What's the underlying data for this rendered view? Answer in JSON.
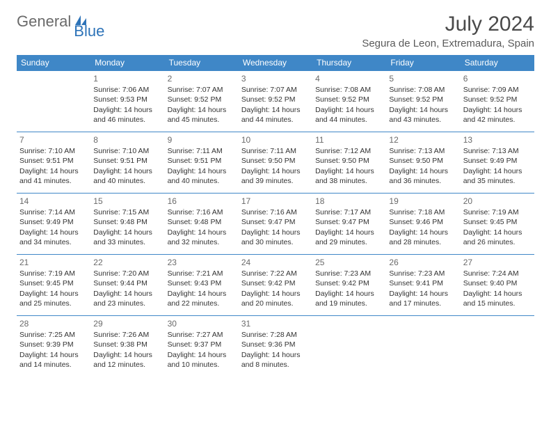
{
  "logo": {
    "general": "General",
    "blue": "Blue"
  },
  "title": "July 2024",
  "location": "Segura de Leon, Extremadura, Spain",
  "colors": {
    "header_bg": "#3f87c7",
    "header_text": "#ffffff",
    "border": "#3f87c7",
    "logo_gray": "#6a6a6a",
    "logo_blue": "#2d73b8",
    "title_color": "#4a4a4a",
    "text": "#333333",
    "daynum": "#6a6a6a",
    "bg": "#ffffff"
  },
  "weekdays": [
    "Sunday",
    "Monday",
    "Tuesday",
    "Wednesday",
    "Thursday",
    "Friday",
    "Saturday"
  ],
  "weeks": [
    [
      null,
      {
        "d": "1",
        "sr": "Sunrise: 7:06 AM",
        "ss": "Sunset: 9:53 PM",
        "dl1": "Daylight: 14 hours",
        "dl2": "and 46 minutes."
      },
      {
        "d": "2",
        "sr": "Sunrise: 7:07 AM",
        "ss": "Sunset: 9:52 PM",
        "dl1": "Daylight: 14 hours",
        "dl2": "and 45 minutes."
      },
      {
        "d": "3",
        "sr": "Sunrise: 7:07 AM",
        "ss": "Sunset: 9:52 PM",
        "dl1": "Daylight: 14 hours",
        "dl2": "and 44 minutes."
      },
      {
        "d": "4",
        "sr": "Sunrise: 7:08 AM",
        "ss": "Sunset: 9:52 PM",
        "dl1": "Daylight: 14 hours",
        "dl2": "and 44 minutes."
      },
      {
        "d": "5",
        "sr": "Sunrise: 7:08 AM",
        "ss": "Sunset: 9:52 PM",
        "dl1": "Daylight: 14 hours",
        "dl2": "and 43 minutes."
      },
      {
        "d": "6",
        "sr": "Sunrise: 7:09 AM",
        "ss": "Sunset: 9:52 PM",
        "dl1": "Daylight: 14 hours",
        "dl2": "and 42 minutes."
      }
    ],
    [
      {
        "d": "7",
        "sr": "Sunrise: 7:10 AM",
        "ss": "Sunset: 9:51 PM",
        "dl1": "Daylight: 14 hours",
        "dl2": "and 41 minutes."
      },
      {
        "d": "8",
        "sr": "Sunrise: 7:10 AM",
        "ss": "Sunset: 9:51 PM",
        "dl1": "Daylight: 14 hours",
        "dl2": "and 40 minutes."
      },
      {
        "d": "9",
        "sr": "Sunrise: 7:11 AM",
        "ss": "Sunset: 9:51 PM",
        "dl1": "Daylight: 14 hours",
        "dl2": "and 40 minutes."
      },
      {
        "d": "10",
        "sr": "Sunrise: 7:11 AM",
        "ss": "Sunset: 9:50 PM",
        "dl1": "Daylight: 14 hours",
        "dl2": "and 39 minutes."
      },
      {
        "d": "11",
        "sr": "Sunrise: 7:12 AM",
        "ss": "Sunset: 9:50 PM",
        "dl1": "Daylight: 14 hours",
        "dl2": "and 38 minutes."
      },
      {
        "d": "12",
        "sr": "Sunrise: 7:13 AM",
        "ss": "Sunset: 9:50 PM",
        "dl1": "Daylight: 14 hours",
        "dl2": "and 36 minutes."
      },
      {
        "d": "13",
        "sr": "Sunrise: 7:13 AM",
        "ss": "Sunset: 9:49 PM",
        "dl1": "Daylight: 14 hours",
        "dl2": "and 35 minutes."
      }
    ],
    [
      {
        "d": "14",
        "sr": "Sunrise: 7:14 AM",
        "ss": "Sunset: 9:49 PM",
        "dl1": "Daylight: 14 hours",
        "dl2": "and 34 minutes."
      },
      {
        "d": "15",
        "sr": "Sunrise: 7:15 AM",
        "ss": "Sunset: 9:48 PM",
        "dl1": "Daylight: 14 hours",
        "dl2": "and 33 minutes."
      },
      {
        "d": "16",
        "sr": "Sunrise: 7:16 AM",
        "ss": "Sunset: 9:48 PM",
        "dl1": "Daylight: 14 hours",
        "dl2": "and 32 minutes."
      },
      {
        "d": "17",
        "sr": "Sunrise: 7:16 AM",
        "ss": "Sunset: 9:47 PM",
        "dl1": "Daylight: 14 hours",
        "dl2": "and 30 minutes."
      },
      {
        "d": "18",
        "sr": "Sunrise: 7:17 AM",
        "ss": "Sunset: 9:47 PM",
        "dl1": "Daylight: 14 hours",
        "dl2": "and 29 minutes."
      },
      {
        "d": "19",
        "sr": "Sunrise: 7:18 AM",
        "ss": "Sunset: 9:46 PM",
        "dl1": "Daylight: 14 hours",
        "dl2": "and 28 minutes."
      },
      {
        "d": "20",
        "sr": "Sunrise: 7:19 AM",
        "ss": "Sunset: 9:45 PM",
        "dl1": "Daylight: 14 hours",
        "dl2": "and 26 minutes."
      }
    ],
    [
      {
        "d": "21",
        "sr": "Sunrise: 7:19 AM",
        "ss": "Sunset: 9:45 PM",
        "dl1": "Daylight: 14 hours",
        "dl2": "and 25 minutes."
      },
      {
        "d": "22",
        "sr": "Sunrise: 7:20 AM",
        "ss": "Sunset: 9:44 PM",
        "dl1": "Daylight: 14 hours",
        "dl2": "and 23 minutes."
      },
      {
        "d": "23",
        "sr": "Sunrise: 7:21 AM",
        "ss": "Sunset: 9:43 PM",
        "dl1": "Daylight: 14 hours",
        "dl2": "and 22 minutes."
      },
      {
        "d": "24",
        "sr": "Sunrise: 7:22 AM",
        "ss": "Sunset: 9:42 PM",
        "dl1": "Daylight: 14 hours",
        "dl2": "and 20 minutes."
      },
      {
        "d": "25",
        "sr": "Sunrise: 7:23 AM",
        "ss": "Sunset: 9:42 PM",
        "dl1": "Daylight: 14 hours",
        "dl2": "and 19 minutes."
      },
      {
        "d": "26",
        "sr": "Sunrise: 7:23 AM",
        "ss": "Sunset: 9:41 PM",
        "dl1": "Daylight: 14 hours",
        "dl2": "and 17 minutes."
      },
      {
        "d": "27",
        "sr": "Sunrise: 7:24 AM",
        "ss": "Sunset: 9:40 PM",
        "dl1": "Daylight: 14 hours",
        "dl2": "and 15 minutes."
      }
    ],
    [
      {
        "d": "28",
        "sr": "Sunrise: 7:25 AM",
        "ss": "Sunset: 9:39 PM",
        "dl1": "Daylight: 14 hours",
        "dl2": "and 14 minutes."
      },
      {
        "d": "29",
        "sr": "Sunrise: 7:26 AM",
        "ss": "Sunset: 9:38 PM",
        "dl1": "Daylight: 14 hours",
        "dl2": "and 12 minutes."
      },
      {
        "d": "30",
        "sr": "Sunrise: 7:27 AM",
        "ss": "Sunset: 9:37 PM",
        "dl1": "Daylight: 14 hours",
        "dl2": "and 10 minutes."
      },
      {
        "d": "31",
        "sr": "Sunrise: 7:28 AM",
        "ss": "Sunset: 9:36 PM",
        "dl1": "Daylight: 14 hours",
        "dl2": "and 8 minutes."
      },
      null,
      null,
      null
    ]
  ]
}
